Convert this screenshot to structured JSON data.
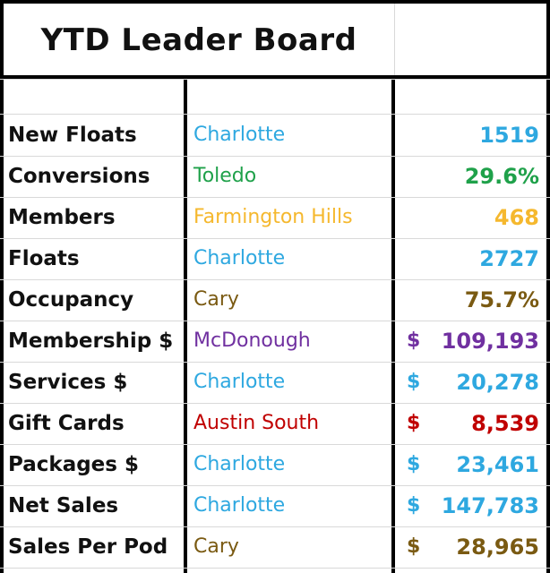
{
  "title": "YTD Leader Board",
  "colors": {
    "blue": "#2ea8e0",
    "green": "#1fa14a",
    "gold": "#f5b82e",
    "brown": "#7a5a12",
    "purple": "#7030a0",
    "red": "#c00000"
  },
  "rows": [
    {
      "metric": "New Floats",
      "location": "Charlotte",
      "currency": "",
      "value": "1519",
      "color": "#2ea8e0"
    },
    {
      "metric": "Conversions",
      "location": "Toledo",
      "currency": "",
      "value": "29.6%",
      "color": "#1fa14a"
    },
    {
      "metric": "Members",
      "location": "Farmington Hills",
      "currency": "",
      "value": "468",
      "color": "#f5b82e"
    },
    {
      "metric": "Floats",
      "location": "Charlotte",
      "currency": "",
      "value": "2727",
      "color": "#2ea8e0"
    },
    {
      "metric": "Occupancy",
      "location": "Cary",
      "currency": "",
      "value": "75.7%",
      "color": "#7a5a12"
    },
    {
      "metric": "Membership $",
      "location": "McDonough",
      "currency": "$",
      "value": "109,193",
      "color": "#7030a0"
    },
    {
      "metric": "Services $",
      "location": "Charlotte",
      "currency": "$",
      "value": "20,278",
      "color": "#2ea8e0"
    },
    {
      "metric": "Gift Cards",
      "location": "Austin South",
      "currency": "$",
      "value": "8,539",
      "color": "#c00000"
    },
    {
      "metric": "Packages $",
      "location": "Charlotte",
      "currency": "$",
      "value": "23,461",
      "color": "#2ea8e0"
    },
    {
      "metric": "Net Sales",
      "location": "Charlotte",
      "currency": "$",
      "value": "147,783",
      "color": "#2ea8e0"
    },
    {
      "metric": "Sales Per Pod",
      "location": "Cary",
      "currency": "$",
      "value": "28,965",
      "color": "#7a5a12"
    }
  ]
}
